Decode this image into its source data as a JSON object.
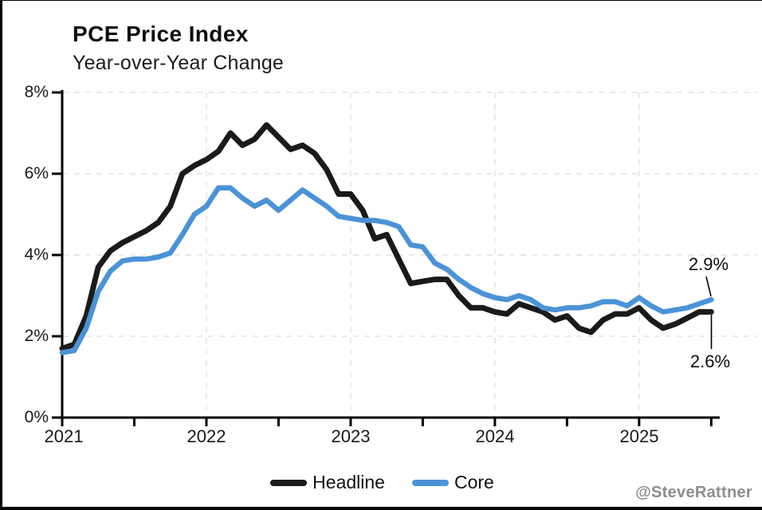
{
  "header": {
    "title": "PCE Price Index",
    "subtitle": "Year-over-Year Change"
  },
  "axes": {
    "y_labels": [
      "8%",
      "6%",
      "4%",
      "2%",
      "0%"
    ],
    "x_labels": [
      "2021",
      "2022",
      "2023",
      "2024",
      "2025"
    ]
  },
  "legend": {
    "items": [
      {
        "label": "Headline",
        "color": "#1a1a1a"
      },
      {
        "label": "Core",
        "color": "#4b92d7"
      }
    ]
  },
  "annotations": {
    "core_latest": "2.9%",
    "headline_latest": "2.6%"
  },
  "footer": {
    "attribution": "@SteveRattner"
  },
  "chart_data": {
    "type": "line",
    "title": "PCE Price Index",
    "subtitle": "Year-over-Year Change",
    "unit": "percent, year-over-year",
    "frequency": "monthly",
    "x_start": "2021-01",
    "x_end": "2025-07",
    "x": [
      "Jan 2021",
      "Feb 2021",
      "Mar 2021",
      "Apr 2021",
      "May 2021",
      "Jun 2021",
      "Jul 2021",
      "Aug 2021",
      "Sep 2021",
      "Oct 2021",
      "Nov 2021",
      "Dec 2021",
      "Jan 2022",
      "Feb 2022",
      "Mar 2022",
      "Apr 2022",
      "May 2022",
      "Jun 2022",
      "Jul 2022",
      "Aug 2022",
      "Sep 2022",
      "Oct 2022",
      "Nov 2022",
      "Dec 2022",
      "Jan 2023",
      "Feb 2023",
      "Mar 2023",
      "Apr 2023",
      "May 2023",
      "Jun 2023",
      "Jul 2023",
      "Aug 2023",
      "Sep 2023",
      "Oct 2023",
      "Nov 2023",
      "Dec 2023",
      "Jan 2024",
      "Feb 2024",
      "Mar 2024",
      "Apr 2024",
      "May 2024",
      "Jun 2024",
      "Jul 2024",
      "Aug 2024",
      "Sep 2024",
      "Oct 2024",
      "Nov 2024",
      "Dec 2024",
      "Jan 2025",
      "Feb 2025",
      "Mar 2025",
      "Apr 2025",
      "May 2025",
      "Jun 2025",
      "Jul 2025"
    ],
    "series": [
      {
        "name": "Headline",
        "color": "#1a1a1a",
        "values": [
          1.7,
          1.8,
          2.5,
          3.7,
          4.1,
          4.3,
          4.45,
          4.6,
          4.8,
          5.2,
          6.0,
          6.2,
          6.35,
          6.55,
          7.0,
          6.7,
          6.85,
          7.2,
          6.9,
          6.6,
          6.7,
          6.5,
          6.1,
          5.5,
          5.5,
          5.1,
          4.4,
          4.5,
          3.9,
          3.3,
          3.35,
          3.4,
          3.4,
          3.0,
          2.7,
          2.7,
          2.6,
          2.55,
          2.8,
          2.7,
          2.6,
          2.4,
          2.5,
          2.2,
          2.1,
          2.4,
          2.55,
          2.55,
          2.7,
          2.4,
          2.2,
          2.3,
          2.45,
          2.6,
          2.6
        ]
      },
      {
        "name": "Core",
        "color": "#4b92d7",
        "values": [
          1.6,
          1.65,
          2.2,
          3.1,
          3.6,
          3.85,
          3.9,
          3.9,
          3.95,
          4.05,
          4.5,
          5.0,
          5.2,
          5.65,
          5.65,
          5.4,
          5.2,
          5.35,
          5.1,
          5.35,
          5.6,
          5.4,
          5.2,
          4.95,
          4.9,
          4.85,
          4.85,
          4.8,
          4.7,
          4.25,
          4.2,
          3.8,
          3.65,
          3.4,
          3.2,
          3.05,
          2.95,
          2.9,
          3.0,
          2.9,
          2.7,
          2.65,
          2.7,
          2.7,
          2.75,
          2.85,
          2.85,
          2.75,
          2.95,
          2.75,
          2.6,
          2.65,
          2.7,
          2.8,
          2.9
        ]
      }
    ],
    "ylim": [
      0,
      8
    ],
    "ytick_values": [
      0,
      2,
      4,
      6,
      8
    ],
    "ytick_labels": [
      "0%",
      "2%",
      "4%",
      "6%",
      "8%"
    ],
    "xtick_years": [
      "2021",
      "2022",
      "2023",
      "2024",
      "2025"
    ],
    "grid": "light dashed horizontal at 2/4/6/8% and vertical at year starts",
    "legend_position": "bottom-center",
    "annotations": [
      {
        "text": "2.9%",
        "series": "Core",
        "point": "2025-07"
      },
      {
        "text": "2.6%",
        "series": "Headline",
        "point": "2025-07"
      }
    ]
  }
}
